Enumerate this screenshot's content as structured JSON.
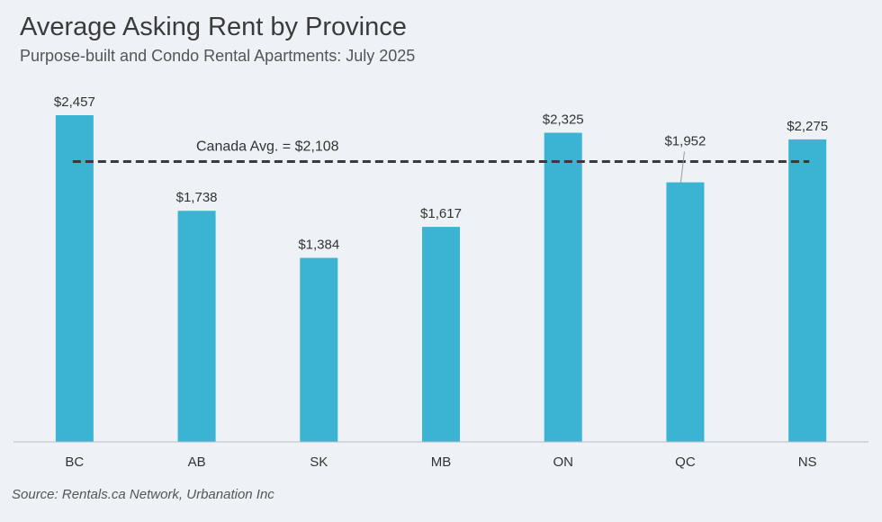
{
  "title": "Average Asking Rent by Province",
  "subtitle": "Purpose-built and Condo Rental Apartments: July 2025",
  "source": "Source: Rentals.ca Network, Urbanation Inc",
  "chart_data": {
    "type": "bar",
    "title": "Average Asking Rent by Province",
    "subtitle": "Purpose-built and Condo Rental Apartments: July 2025",
    "xlabel": "",
    "ylabel": "",
    "categories": [
      "BC",
      "AB",
      "SK",
      "MB",
      "ON",
      "QC",
      "NS"
    ],
    "values": [
      2457,
      1738,
      1384,
      1617,
      2325,
      1952,
      2275
    ],
    "value_labels": [
      "$2,457",
      "$1,738",
      "$1,384",
      "$1,617",
      "$2,325",
      "$1,952",
      "$2,275"
    ],
    "ylim": [
      0,
      2457
    ],
    "grid": false,
    "bar_color": "#3bb3d3",
    "reference_line": {
      "value": 2108,
      "label": "Canada Avg. = $2,108",
      "style": "dashed",
      "color": "#3a3a3a"
    }
  }
}
